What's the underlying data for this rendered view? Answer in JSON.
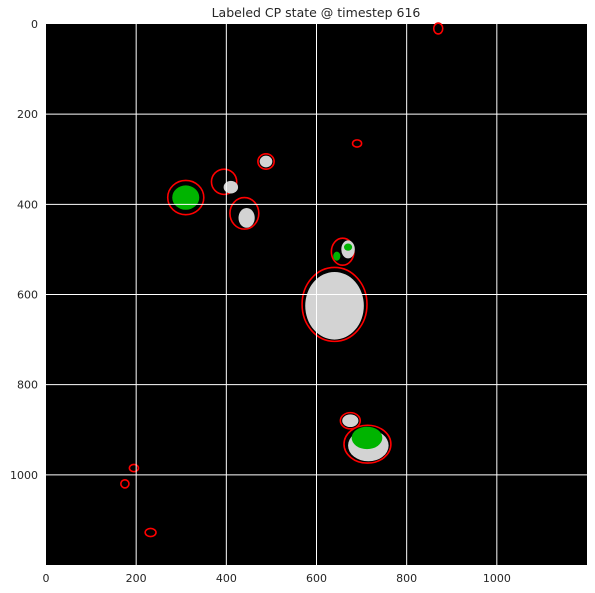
{
  "chart_data": {
    "type": "heatmap",
    "title": "Labeled CP state @ timestep 616",
    "xlabel": "",
    "ylabel": "",
    "xlim": [
      0,
      1200
    ],
    "ylim": [
      1200,
      0
    ],
    "x_ticks": [
      "0",
      "200",
      "400",
      "600",
      "800",
      "1000"
    ],
    "y_ticks": [
      "0",
      "200",
      "400",
      "600",
      "800",
      "1000"
    ],
    "grid": true,
    "background_color": "#000000",
    "state_colors": {
      "interior": "#d3d3d3",
      "boundary": "#ff0000",
      "labeled": "#00b400"
    },
    "regions": [
      {
        "state": "interior",
        "x": 640,
        "y": 625,
        "rx": 65,
        "ry": 75
      },
      {
        "state": "interior",
        "x": 715,
        "y": 935,
        "rx": 45,
        "ry": 35
      },
      {
        "state": "interior",
        "x": 675,
        "y": 880,
        "rx": 18,
        "ry": 14
      },
      {
        "state": "interior",
        "x": 488,
        "y": 305,
        "rx": 14,
        "ry": 13
      },
      {
        "state": "interior",
        "x": 445,
        "y": 430,
        "rx": 18,
        "ry": 22
      },
      {
        "state": "interior",
        "x": 410,
        "y": 362,
        "rx": 16,
        "ry": 14
      },
      {
        "state": "interior",
        "x": 670,
        "y": 500,
        "rx": 15,
        "ry": 20
      },
      {
        "state": "labeled",
        "x": 310,
        "y": 385,
        "rx": 30,
        "ry": 27
      },
      {
        "state": "labeled",
        "x": 712,
        "y": 918,
        "rx": 34,
        "ry": 25
      },
      {
        "state": "labeled",
        "x": 645,
        "y": 515,
        "rx": 8,
        "ry": 10
      },
      {
        "state": "labeled",
        "x": 670,
        "y": 495,
        "rx": 9,
        "ry": 8
      },
      {
        "state": "boundary",
        "x": 640,
        "y": 622,
        "rx": 72,
        "ry": 82
      },
      {
        "state": "boundary",
        "x": 713,
        "y": 932,
        "rx": 52,
        "ry": 42
      },
      {
        "state": "boundary",
        "x": 675,
        "y": 880,
        "rx": 22,
        "ry": 18
      },
      {
        "state": "boundary",
        "x": 310,
        "y": 385,
        "rx": 40,
        "ry": 38
      },
      {
        "state": "boundary",
        "x": 488,
        "y": 305,
        "rx": 18,
        "ry": 17
      },
      {
        "state": "boundary",
        "x": 440,
        "y": 420,
        "rx": 32,
        "ry": 35
      },
      {
        "state": "boundary",
        "x": 395,
        "y": 350,
        "rx": 28,
        "ry": 28
      },
      {
        "state": "boundary",
        "x": 658,
        "y": 505,
        "rx": 25,
        "ry": 30
      },
      {
        "state": "boundary",
        "x": 690,
        "y": 265,
        "rx": 10,
        "ry": 8
      },
      {
        "state": "boundary",
        "x": 195,
        "y": 985,
        "rx": 10,
        "ry": 8
      },
      {
        "state": "boundary",
        "x": 175,
        "y": 1020,
        "rx": 9,
        "ry": 9
      },
      {
        "state": "boundary",
        "x": 232,
        "y": 1128,
        "rx": 12,
        "ry": 9
      },
      {
        "state": "boundary",
        "x": 870,
        "y": 10,
        "rx": 10,
        "ry": 12
      }
    ]
  }
}
